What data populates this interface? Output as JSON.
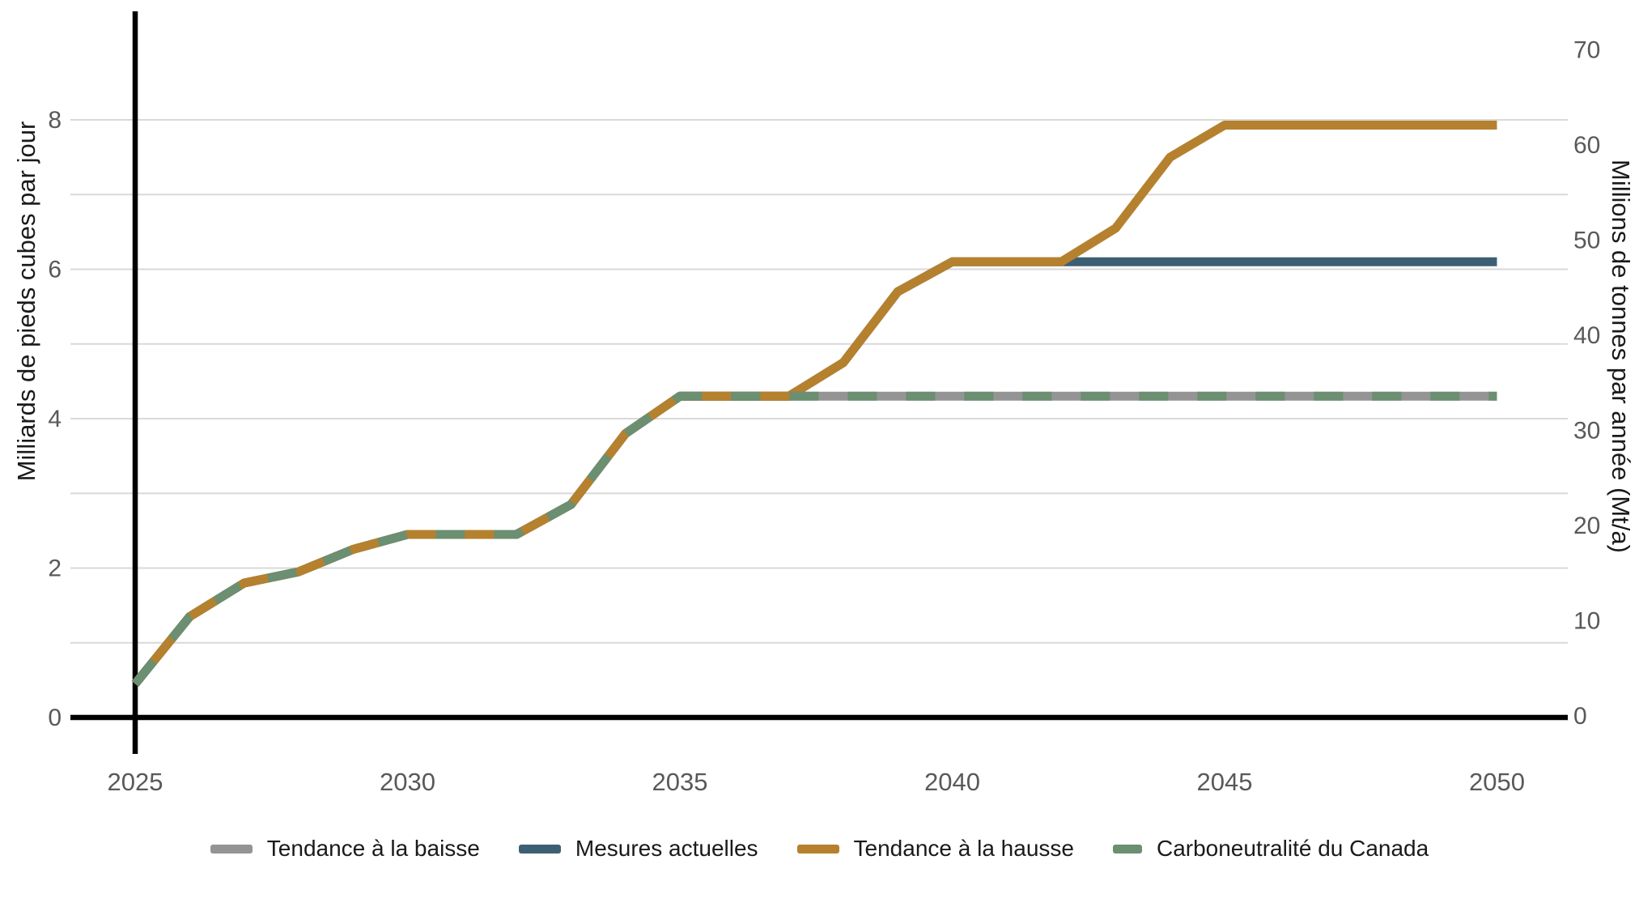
{
  "chart_data": {
    "type": "line",
    "title": "",
    "x": [
      2025,
      2026,
      2027,
      2028,
      2029,
      2030,
      2031,
      2032,
      2033,
      2034,
      2035,
      2036,
      2037,
      2038,
      2039,
      2040,
      2041,
      2042,
      2043,
      2044,
      2045,
      2046,
      2047,
      2048,
      2049,
      2050
    ],
    "x_tick_labels": [
      "2025",
      "2030",
      "2035",
      "2040",
      "2045",
      "2050"
    ],
    "x_tick_years": [
      2025,
      2030,
      2035,
      2040,
      2045,
      2050
    ],
    "left_axis": {
      "title": "Milliards de pieds cubes par jour",
      "tick_labels": [
        "0",
        "2",
        "4",
        "6",
        "8"
      ],
      "tick_values": [
        0,
        2,
        4,
        6,
        8
      ],
      "range": [
        0,
        8
      ],
      "gridline_values": [
        1,
        2,
        3,
        4,
        5,
        6,
        7,
        8
      ]
    },
    "right_axis": {
      "title": "Millions de tonnes par année (Mt/a)",
      "tick_labels": [
        "0",
        "10",
        "20",
        "30",
        "40",
        "50",
        "60",
        "70"
      ],
      "tick_values": [
        0,
        10,
        20,
        30,
        40,
        50,
        60,
        70
      ],
      "range": [
        0,
        70
      ]
    },
    "grid": "horizontal-only",
    "legend_position": "bottom",
    "baseline_hline_value": 0,
    "baseline_vline_year": 2025,
    "axis_line_color": "#000000",
    "gridline_color": "#d9d9d9",
    "tick_label_color": "#595959",
    "series": [
      {
        "name": "Tendance à la baisse",
        "color": "#949494",
        "dash": null,
        "values": [
          0.45,
          1.35,
          1.8,
          1.95,
          2.25,
          2.45,
          2.45,
          2.45,
          2.85,
          3.8,
          4.3,
          4.3,
          4.3,
          4.3,
          4.3,
          4.3,
          4.3,
          4.3,
          4.3,
          4.3,
          4.3,
          4.3,
          4.3,
          4.3,
          4.3,
          4.3
        ]
      },
      {
        "name": "Mesures actuelles",
        "color": "#3d5f73",
        "dash": null,
        "values": [
          0.45,
          1.35,
          1.8,
          1.95,
          2.25,
          2.45,
          2.45,
          2.45,
          2.85,
          3.8,
          4.3,
          4.3,
          4.3,
          4.75,
          5.7,
          6.1,
          6.1,
          6.1,
          6.1,
          6.1,
          6.1,
          6.1,
          6.1,
          6.1,
          6.1,
          6.1
        ]
      },
      {
        "name": "Tendance à la hausse",
        "color": "#b5812e",
        "dash": null,
        "values": [
          0.45,
          1.35,
          1.8,
          1.95,
          2.25,
          2.45,
          2.45,
          2.45,
          2.85,
          3.8,
          4.3,
          4.3,
          4.3,
          4.75,
          5.7,
          6.1,
          6.1,
          6.1,
          6.55,
          7.5,
          7.93,
          7.93,
          7.93,
          7.93,
          7.93,
          7.93
        ]
      },
      {
        "name": "Carboneutralité du Canada",
        "color": "#6b8f70",
        "dash": [
          36,
          36
        ],
        "values": [
          0.45,
          1.35,
          1.8,
          1.95,
          2.25,
          2.45,
          2.45,
          2.45,
          2.85,
          3.8,
          4.3,
          4.3,
          4.3,
          4.3,
          4.3,
          4.3,
          4.3,
          4.3,
          4.3,
          4.3,
          4.3,
          4.3,
          4.3,
          4.3,
          4.3,
          4.3
        ]
      }
    ]
  }
}
